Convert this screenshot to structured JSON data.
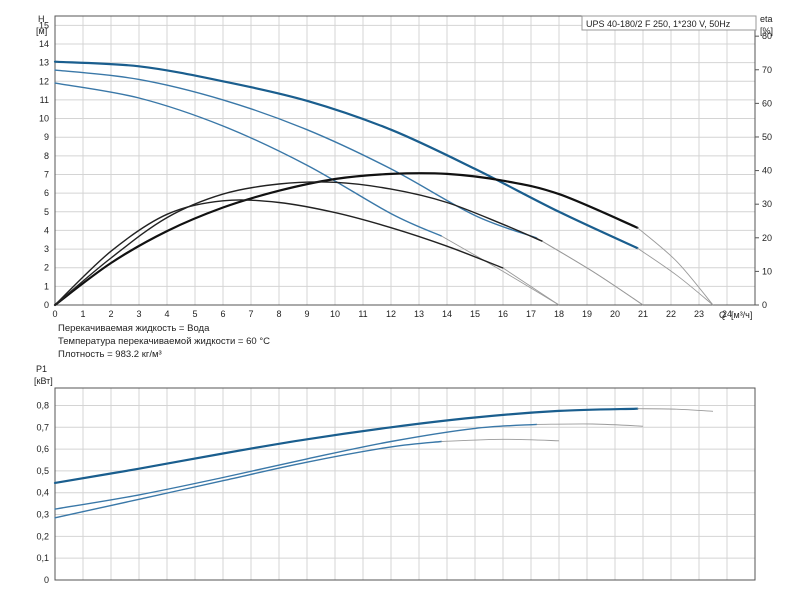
{
  "title": "UPS 40-180/2 F 250, 1*230 V, 50Hz",
  "notes": [
    "Перекачиваемая жидкость = Вода",
    "Температура перекачиваемой жидкости = 60 °C",
    "Плотность = 983.2 кг/м³"
  ],
  "chart_data": [
    {
      "type": "line",
      "name": "head-efficiency",
      "title": "UPS 40-180/2 F 250, 1*230 V, 50Hz",
      "xlabel": "Q [м³/ч]",
      "ylabel": "H [м]",
      "ylabel_top": "H",
      "ylabel_unit": "[м]",
      "y2label_top": "eta",
      "y2label_unit": "[%]",
      "xlabel_letter": "Q",
      "xlabel_unit": "[м³/ч]",
      "xlim": [
        0,
        25
      ],
      "ylim": [
        0,
        15.5
      ],
      "y2lim": [
        0,
        86
      ],
      "x_ticks": [
        0,
        1,
        2,
        3,
        4,
        5,
        6,
        7,
        8,
        9,
        10,
        11,
        12,
        13,
        14,
        15,
        16,
        17,
        18,
        19,
        20,
        21,
        22,
        23,
        24
      ],
      "y_ticks": [
        0,
        1,
        2,
        3,
        4,
        5,
        6,
        7,
        8,
        9,
        10,
        11,
        12,
        13,
        14,
        15
      ],
      "y2_ticks": [
        0,
        10,
        20,
        30,
        40,
        50,
        60,
        70,
        80
      ],
      "grid": true,
      "head_series": [
        {
          "color": "#1a5e8e",
          "width": 2.2,
          "x": [
            0,
            3,
            6,
            9,
            12,
            15,
            18,
            20.8
          ],
          "y": [
            13.05,
            12.8,
            12.0,
            10.95,
            9.4,
            7.3,
            5.0,
            3.05
          ],
          "ext_x": [
            20.8,
            22.2,
            23.5
          ],
          "ext_y": [
            3.05,
            1.6,
            0
          ]
        },
        {
          "color": "#3a78a8",
          "width": 1.4,
          "x": [
            0,
            3,
            6,
            9,
            12,
            15,
            17.2
          ],
          "y": [
            12.6,
            12.1,
            11.0,
            9.4,
            7.3,
            4.8,
            3.6
          ],
          "ext_x": [
            17.2,
            19.2,
            21.0
          ],
          "ext_y": [
            3.6,
            1.8,
            0
          ]
        },
        {
          "color": "#3a78a8",
          "width": 1.4,
          "x": [
            0,
            3,
            6,
            9,
            12,
            13.8
          ],
          "y": [
            11.9,
            11.1,
            9.6,
            7.5,
            4.9,
            3.7
          ],
          "ext_x": [
            13.8,
            16.0,
            18.0
          ],
          "ext_y": [
            3.7,
            1.8,
            0
          ]
        }
      ],
      "eta_series": [
        {
          "color": "#111111",
          "width": 2.2,
          "x": [
            0,
            2,
            4,
            6,
            8,
            10,
            12,
            14,
            16,
            18,
            20.8
          ],
          "y": [
            0,
            12.5,
            22,
            29,
            34,
            37.5,
            39,
            39,
            37,
            33,
            23
          ],
          "ext_x": [
            20.8,
            22.2,
            23.5
          ],
          "ext_y": [
            23,
            13,
            0
          ]
        },
        {
          "color": "#222222",
          "width": 1.4,
          "x": [
            0,
            2,
            4,
            6,
            8,
            10,
            12,
            14,
            16,
            17.4
          ],
          "y": [
            0,
            14,
            26,
            33,
            36,
            36.5,
            34.5,
            30.5,
            24,
            19
          ],
          "ext_x": [
            17.4,
            19.3,
            21.0
          ],
          "ext_y": [
            19,
            9.5,
            0
          ]
        },
        {
          "color": "#222222",
          "width": 1.4,
          "x": [
            0,
            2,
            4,
            6,
            8,
            10,
            12,
            14,
            16
          ],
          "y": [
            0,
            16,
            27,
            31,
            30.5,
            27.5,
            23,
            17.5,
            11
          ],
          "ext_x": [
            16,
            17,
            18.0
          ],
          "ext_y": [
            11,
            5.5,
            0
          ]
        }
      ]
    },
    {
      "type": "line",
      "name": "power",
      "ylabel_top": "P1",
      "ylabel_unit": "[кВт]",
      "xlim": [
        0,
        25
      ],
      "ylim": [
        0,
        0.88
      ],
      "y_ticks": [
        0,
        0.1,
        0.2,
        0.3,
        0.4,
        0.5,
        0.6,
        0.7,
        0.8
      ],
      "y_tick_labels": [
        "0",
        "0,1",
        "0,2",
        "0,3",
        "0,4",
        "0,5",
        "0,6",
        "0,7",
        "0,8"
      ],
      "grid": true,
      "series": [
        {
          "color": "#1a5e8e",
          "width": 2.2,
          "x": [
            0,
            3,
            6,
            9,
            12,
            15,
            18,
            20.8
          ],
          "y": [
            0.445,
            0.51,
            0.58,
            0.645,
            0.7,
            0.745,
            0.775,
            0.785
          ],
          "ext_x": [
            20.8,
            22.2,
            23.5
          ],
          "ext_y": [
            0.785,
            0.783,
            0.773
          ]
        },
        {
          "color": "#3a78a8",
          "width": 1.4,
          "x": [
            0,
            3,
            6,
            9,
            12,
            15,
            17.2
          ],
          "y": [
            0.325,
            0.39,
            0.47,
            0.555,
            0.635,
            0.695,
            0.713
          ],
          "ext_x": [
            17.2,
            19.2,
            21.0
          ],
          "ext_y": [
            0.713,
            0.715,
            0.705
          ]
        },
        {
          "color": "#3a78a8",
          "width": 1.4,
          "x": [
            0,
            3,
            6,
            9,
            12,
            13.8
          ],
          "y": [
            0.285,
            0.37,
            0.455,
            0.54,
            0.61,
            0.635
          ],
          "ext_x": [
            13.8,
            16.0,
            18.0
          ],
          "ext_y": [
            0.635,
            0.645,
            0.638
          ]
        }
      ]
    }
  ]
}
